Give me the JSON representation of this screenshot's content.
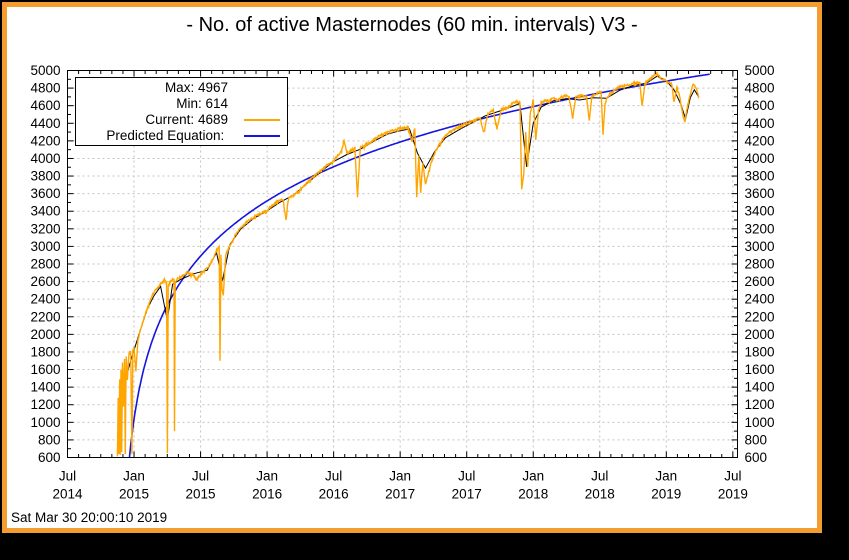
{
  "window": {
    "title": "- No. of active Masternodes (60 min. intervals) V3 -",
    "timestamp": "Sat Mar 30 20:00:10 2019"
  },
  "colors": {
    "panel_border": "#F59C30",
    "background": "#000000",
    "grid": "#C3C3C3",
    "active_series": "#FFA500",
    "trend_series": "#000000",
    "predicted_series": "#1515E0"
  },
  "legend": {
    "max_label": "Max: ",
    "max_value": "4967",
    "min_label": "Min: ",
    "min_value": "614",
    "current_label": "Current: ",
    "current_value": "4689",
    "predicted_label": "Predicted Equation: "
  },
  "chart_data": {
    "type": "line",
    "title": "- No. of active Masternodes (60 min. intervals) V3 -",
    "xlabel": "",
    "ylabel": "",
    "grid": true,
    "legend_position": "top-left",
    "stats": {
      "max": 4967,
      "min": 614,
      "current": 4689
    },
    "x_axis": {
      "unit": "decimal-year",
      "range_years": [
        2014.5,
        2019.535
      ],
      "minor_tick": "1 month",
      "major_ticks": [
        {
          "m": "Jul",
          "y": "2014",
          "t": 2014.5
        },
        {
          "m": "Jan",
          "y": "2015",
          "t": 2015.0
        },
        {
          "m": "Jul",
          "y": "2015",
          "t": 2015.5
        },
        {
          "m": "Jan",
          "y": "2016",
          "t": 2016.0
        },
        {
          "m": "Jul",
          "y": "2016",
          "t": 2016.5
        },
        {
          "m": "Jan",
          "y": "2017",
          "t": 2017.0
        },
        {
          "m": "Jul",
          "y": "2017",
          "t": 2017.5
        },
        {
          "m": "Jan",
          "y": "2018",
          "t": 2018.0
        },
        {
          "m": "Jul",
          "y": "2018",
          "t": 2018.5
        },
        {
          "m": "Jan",
          "y": "2019",
          "t": 2019.0
        },
        {
          "m": "Jul",
          "y": "2019",
          "t": 2019.5
        }
      ]
    },
    "y_axis": {
      "min": 600,
      "max": 5000,
      "tick_step": 200,
      "minor_tick_step": 100,
      "mirrored": true
    },
    "series": [
      {
        "name": "active-masternodes",
        "legend_label": "Current: 4689",
        "color": "#FFA500",
        "points": [
          [
            2014.875,
            614
          ],
          [
            2014.881,
            1280
          ],
          [
            2014.886,
            640
          ],
          [
            2014.892,
            1490
          ],
          [
            2014.896,
            630
          ],
          [
            2014.902,
            1600
          ],
          [
            2014.907,
            660
          ],
          [
            2014.913,
            1680
          ],
          [
            2014.92,
            1180
          ],
          [
            2014.928,
            1720
          ],
          [
            2014.934,
            640
          ],
          [
            2014.941,
            1750
          ],
          [
            2014.95,
            1480
          ],
          [
            2014.962,
            1780
          ],
          [
            2014.975,
            1800
          ],
          [
            2014.984,
            640
          ],
          [
            2014.991,
            1820
          ],
          [
            2015.0,
            1850
          ],
          [
            2015.014,
            1580
          ],
          [
            2015.03,
            1950
          ],
          [
            2015.05,
            2060
          ],
          [
            2015.07,
            2160
          ],
          [
            2015.09,
            2250
          ],
          [
            2015.11,
            2340
          ],
          [
            2015.13,
            2420
          ],
          [
            2015.15,
            2480
          ],
          [
            2015.17,
            2520
          ],
          [
            2015.19,
            2555
          ],
          [
            2015.21,
            2590
          ],
          [
            2015.23,
            2615
          ],
          [
            2015.245,
            2585
          ],
          [
            2015.251,
            650
          ],
          [
            2015.257,
            2550
          ],
          [
            2015.27,
            2590
          ],
          [
            2015.285,
            2615
          ],
          [
            2015.3,
            2625
          ],
          [
            2015.304,
            900
          ],
          [
            2015.309,
            2600
          ],
          [
            2015.33,
            2640
          ],
          [
            2015.36,
            2665
          ],
          [
            2015.4,
            2700
          ],
          [
            2015.44,
            2680
          ],
          [
            2015.47,
            2620
          ],
          [
            2015.5,
            2685
          ],
          [
            2015.53,
            2725
          ],
          [
            2015.56,
            2765
          ],
          [
            2015.59,
            2855
          ],
          [
            2015.62,
            2950
          ],
          [
            2015.64,
            2985
          ],
          [
            2015.646,
            1700
          ],
          [
            2015.653,
            2905
          ],
          [
            2015.66,
            2520
          ],
          [
            2015.671,
            2450
          ],
          [
            2015.69,
            2905
          ],
          [
            2015.72,
            3010
          ],
          [
            2015.76,
            3125
          ],
          [
            2015.8,
            3215
          ],
          [
            2015.84,
            3270
          ],
          [
            2015.88,
            3310
          ],
          [
            2015.92,
            3350
          ],
          [
            2015.96,
            3380
          ],
          [
            2016.0,
            3405
          ],
          [
            2016.04,
            3470
          ],
          [
            2016.08,
            3515
          ],
          [
            2016.12,
            3535
          ],
          [
            2016.142,
            3300
          ],
          [
            2016.16,
            3545
          ],
          [
            2016.2,
            3580
          ],
          [
            2016.25,
            3645
          ],
          [
            2016.3,
            3720
          ],
          [
            2016.35,
            3795
          ],
          [
            2016.4,
            3855
          ],
          [
            2016.45,
            3925
          ],
          [
            2016.5,
            3975
          ],
          [
            2016.53,
            4030
          ],
          [
            2016.56,
            4085
          ],
          [
            2016.578,
            4215
          ],
          [
            2016.6,
            4060
          ],
          [
            2016.63,
            4090
          ],
          [
            2016.66,
            4115
          ],
          [
            2016.679,
            3560
          ],
          [
            2016.7,
            4125
          ],
          [
            2016.74,
            4155
          ],
          [
            2016.78,
            4185
          ],
          [
            2016.82,
            4235
          ],
          [
            2016.86,
            4265
          ],
          [
            2016.9,
            4295
          ],
          [
            2016.94,
            4315
          ],
          [
            2016.98,
            4335
          ],
          [
            2017.02,
            4345
          ],
          [
            2017.06,
            4355
          ],
          [
            2017.088,
            4190
          ],
          [
            2017.11,
            4345
          ],
          [
            2017.124,
            3560
          ],
          [
            2017.14,
            4030
          ],
          [
            2017.154,
            3610
          ],
          [
            2017.17,
            3950
          ],
          [
            2017.19,
            3700
          ],
          [
            2017.21,
            3825
          ],
          [
            2017.24,
            3985
          ],
          [
            2017.28,
            4125
          ],
          [
            2017.32,
            4215
          ],
          [
            2017.36,
            4285
          ],
          [
            2017.4,
            4325
          ],
          [
            2017.44,
            4355
          ],
          [
            2017.48,
            4385
          ],
          [
            2017.52,
            4405
          ],
          [
            2017.56,
            4435
          ],
          [
            2017.6,
            4465
          ],
          [
            2017.628,
            4300
          ],
          [
            2017.66,
            4515
          ],
          [
            2017.7,
            4545
          ],
          [
            2017.728,
            4340
          ],
          [
            2017.76,
            4555
          ],
          [
            2017.8,
            4575
          ],
          [
            2017.84,
            4615
          ],
          [
            2017.87,
            4655
          ],
          [
            2017.9,
            4635
          ],
          [
            2017.913,
            3650
          ],
          [
            2017.928,
            3805
          ],
          [
            2017.943,
            4300
          ],
          [
            2017.958,
            3905
          ],
          [
            2017.977,
            4505
          ],
          [
            2018.0,
            4665
          ],
          [
            2018.019,
            4210
          ],
          [
            2018.04,
            4555
          ],
          [
            2018.06,
            4635
          ],
          [
            2018.09,
            4665
          ],
          [
            2018.12,
            4650
          ],
          [
            2018.15,
            4695
          ],
          [
            2018.18,
            4665
          ],
          [
            2018.21,
            4695
          ],
          [
            2018.24,
            4715
          ],
          [
            2018.27,
            4695
          ],
          [
            2018.296,
            4460
          ],
          [
            2018.32,
            4695
          ],
          [
            2018.36,
            4715
          ],
          [
            2018.4,
            4705
          ],
          [
            2018.421,
            4430
          ],
          [
            2018.44,
            4705
          ],
          [
            2018.48,
            4745
          ],
          [
            2018.51,
            4765
          ],
          [
            2018.524,
            4270
          ],
          [
            2018.54,
            4625
          ],
          [
            2018.56,
            4705
          ],
          [
            2018.6,
            4765
          ],
          [
            2018.64,
            4805
          ],
          [
            2018.68,
            4825
          ],
          [
            2018.72,
            4835
          ],
          [
            2018.76,
            4855
          ],
          [
            2018.8,
            4865
          ],
          [
            2018.818,
            4600
          ],
          [
            2018.84,
            4855
          ],
          [
            2018.87,
            4895
          ],
          [
            2018.9,
            4935
          ],
          [
            2018.924,
            4967
          ],
          [
            2018.95,
            4925
          ],
          [
            2018.98,
            4895
          ],
          [
            2019.01,
            4875
          ],
          [
            2019.04,
            4845
          ],
          [
            2019.058,
            4640
          ],
          [
            2019.08,
            4815
          ],
          [
            2019.1,
            4705
          ],
          [
            2019.12,
            4525
          ],
          [
            2019.14,
            4410
          ],
          [
            2019.16,
            4605
          ],
          [
            2019.18,
            4725
          ],
          [
            2019.2,
            4845
          ],
          [
            2019.22,
            4815
          ],
          [
            2019.235,
            4755
          ],
          [
            2019.245,
            4689
          ]
        ]
      },
      {
        "name": "trend",
        "legend_label": "",
        "color": "#000000",
        "points": [
          [
            2014.88,
            650
          ],
          [
            2014.92,
            1350
          ],
          [
            2014.96,
            1620
          ],
          [
            2015.0,
            1820
          ],
          [
            2015.05,
            2060
          ],
          [
            2015.1,
            2290
          ],
          [
            2015.15,
            2440
          ],
          [
            2015.2,
            2545
          ],
          [
            2015.25,
            2160
          ],
          [
            2015.29,
            2570
          ],
          [
            2015.35,
            2625
          ],
          [
            2015.45,
            2690
          ],
          [
            2015.55,
            2730
          ],
          [
            2015.62,
            2930
          ],
          [
            2015.665,
            2610
          ],
          [
            2015.72,
            3020
          ],
          [
            2015.8,
            3195
          ],
          [
            2015.9,
            3320
          ],
          [
            2016.0,
            3405
          ],
          [
            2016.1,
            3505
          ],
          [
            2016.2,
            3585
          ],
          [
            2016.3,
            3715
          ],
          [
            2016.4,
            3845
          ],
          [
            2016.5,
            3965
          ],
          [
            2016.6,
            4045
          ],
          [
            2016.7,
            4105
          ],
          [
            2016.8,
            4195
          ],
          [
            2016.9,
            4275
          ],
          [
            2017.0,
            4315
          ],
          [
            2017.07,
            4335
          ],
          [
            2017.13,
            4060
          ],
          [
            2017.19,
            3890
          ],
          [
            2017.26,
            4080
          ],
          [
            2017.34,
            4235
          ],
          [
            2017.44,
            4325
          ],
          [
            2017.54,
            4405
          ],
          [
            2017.64,
            4485
          ],
          [
            2017.74,
            4535
          ],
          [
            2017.84,
            4590
          ],
          [
            2017.9,
            4625
          ],
          [
            2017.95,
            3905
          ],
          [
            2018.0,
            4395
          ],
          [
            2018.06,
            4585
          ],
          [
            2018.15,
            4655
          ],
          [
            2018.25,
            4680
          ],
          [
            2018.35,
            4665
          ],
          [
            2018.45,
            4690
          ],
          [
            2018.55,
            4685
          ],
          [
            2018.65,
            4775
          ],
          [
            2018.75,
            4830
          ],
          [
            2018.85,
            4855
          ],
          [
            2018.93,
            4935
          ],
          [
            2019.0,
            4885
          ],
          [
            2019.06,
            4775
          ],
          [
            2019.11,
            4615
          ],
          [
            2019.145,
            4450
          ],
          [
            2019.18,
            4690
          ],
          [
            2019.21,
            4780
          ],
          [
            2019.245,
            4695
          ]
        ]
      },
      {
        "name": "predicted-equation",
        "legend_label": "Predicted Equation:",
        "color": "#1515E0",
        "equation": {
          "form": "v(t) = a + b * ln(t - c)",
          "a": 3419,
          "b": 1035,
          "c": 2014.9
        },
        "t_start": 2014.966,
        "t_end": 2019.33
      }
    ]
  }
}
